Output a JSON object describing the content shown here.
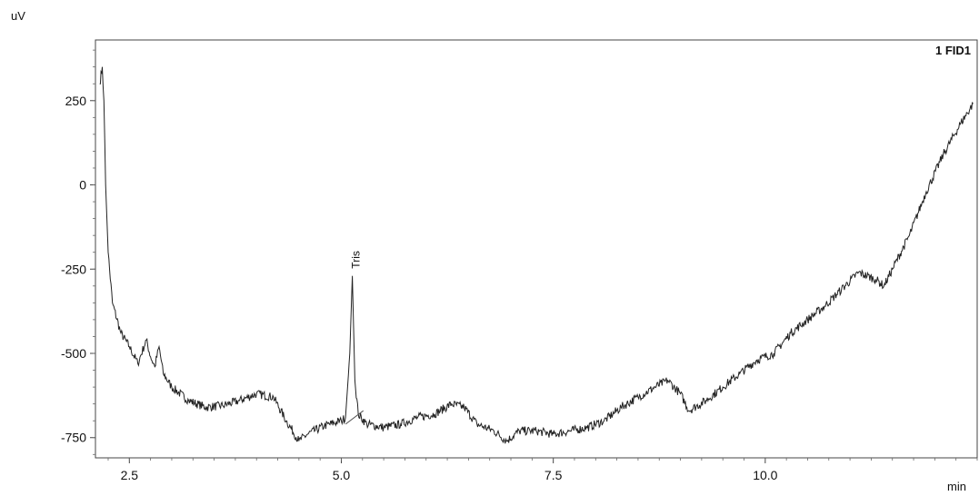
{
  "chart_data": {
    "type": "line",
    "title": "",
    "xlabel": "min",
    "ylabel": "uV",
    "trace_label": "1 FID1",
    "xlim": [
      2.1,
      12.5
    ],
    "ylim": [
      -810,
      430
    ],
    "xticks": [
      2.5,
      5.0,
      7.5,
      10.0
    ],
    "xtick_labels": [
      "2.5",
      "5.0",
      "7.5",
      "10.0"
    ],
    "yticks": [
      250,
      0,
      -250,
      -500,
      -750
    ],
    "ytick_labels": [
      "250",
      "0",
      "-250",
      "-500",
      "-750"
    ],
    "grid": false,
    "annotations": [
      {
        "text": "Tris",
        "x": 5.13,
        "y": -270
      }
    ],
    "series": [
      {
        "x": [
          2.15,
          2.18,
          2.2,
          2.22,
          2.25,
          2.3,
          2.4,
          2.5,
          2.6,
          2.7,
          2.75,
          2.8,
          2.85,
          2.9,
          3.0,
          3.2,
          3.4,
          3.6,
          3.8,
          4.0,
          4.2,
          4.35,
          4.5,
          4.6,
          4.8,
          5.0,
          5.05,
          5.1,
          5.13,
          5.16,
          5.2,
          5.3,
          5.5,
          5.7,
          5.9,
          6.1,
          6.3,
          6.45,
          6.6,
          6.8,
          6.95,
          7.1,
          7.3,
          7.5,
          7.7,
          7.9,
          8.1,
          8.3,
          8.5,
          8.7,
          8.85,
          9.0,
          9.1,
          9.3,
          9.5,
          9.7,
          9.9,
          10.1,
          10.3,
          10.5,
          10.7,
          10.9,
          11.1,
          11.3,
          11.4,
          11.5,
          11.7,
          11.9,
          12.1,
          12.3,
          12.45
        ],
        "y": [
          300,
          350,
          250,
          0,
          -200,
          -350,
          -440,
          -480,
          -530,
          -460,
          -510,
          -540,
          -480,
          -560,
          -600,
          -640,
          -660,
          -655,
          -640,
          -620,
          -630,
          -700,
          -760,
          -740,
          -715,
          -700,
          -690,
          -500,
          -270,
          -580,
          -680,
          -710,
          -720,
          -710,
          -690,
          -680,
          -650,
          -660,
          -710,
          -730,
          -760,
          -730,
          -730,
          -740,
          -730,
          -720,
          -700,
          -660,
          -630,
          -600,
          -580,
          -620,
          -670,
          -640,
          -600,
          -560,
          -520,
          -500,
          -440,
          -400,
          -360,
          -310,
          -260,
          -280,
          -300,
          -250,
          -150,
          -20,
          90,
          180,
          240
        ]
      }
    ]
  }
}
